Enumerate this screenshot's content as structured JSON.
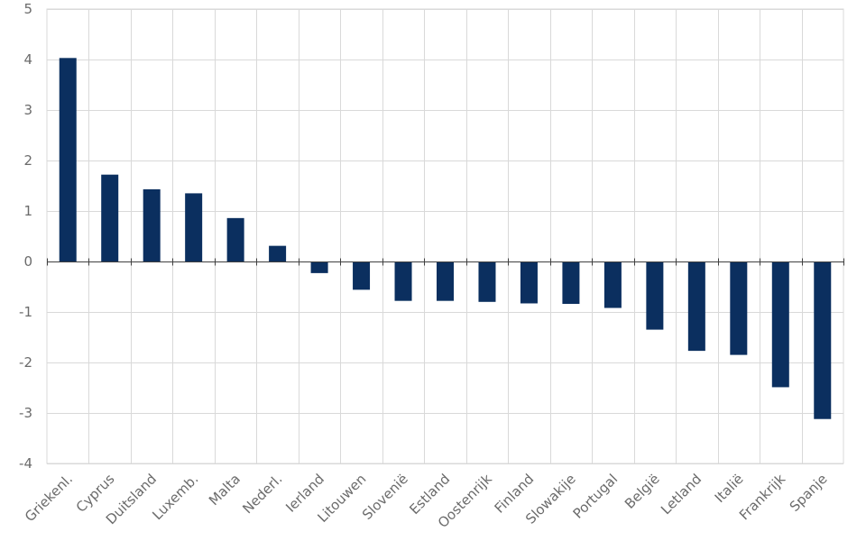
{
  "chart_data": {
    "type": "bar",
    "title": "",
    "xlabel": "",
    "ylabel": "",
    "ylim": [
      -4,
      5
    ],
    "yticks": [
      5,
      4,
      3,
      2,
      1,
      0,
      -1,
      -2,
      -3,
      -4
    ],
    "grid": true,
    "legend": "none",
    "bar_color": "#0b2f5f",
    "grid_color": "#d9d9d9",
    "axis_color": "#404040",
    "categories": [
      "Griekenl.",
      "Cyprus",
      "Duitsland",
      "Luxemb.",
      "Malta",
      "Nederl.",
      "Ierland",
      "Litouwen",
      "Slovenië",
      "Estland",
      "Oostenrijk",
      "Finland",
      "Slowakije",
      "Portugal",
      "België",
      "Letland",
      "Italië",
      "Frankrijk",
      "Spanje"
    ],
    "values": [
      4.03,
      1.72,
      1.43,
      1.35,
      0.86,
      0.31,
      -0.23,
      -0.56,
      -0.78,
      -0.78,
      -0.8,
      -0.83,
      -0.84,
      -0.92,
      -1.35,
      -1.77,
      -1.85,
      -2.49,
      -3.12
    ]
  }
}
